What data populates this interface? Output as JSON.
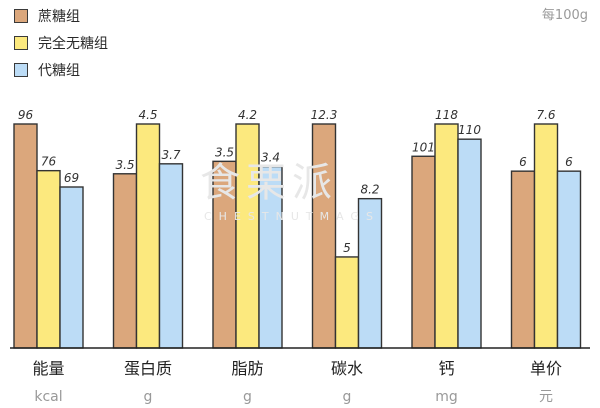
{
  "unit_note": "每100g",
  "watermark": {
    "main": "食栗派",
    "sub": "CHESTNUTMAGS"
  },
  "colors": {
    "sucrose": "#dba77c",
    "sugar_free": "#fce97e",
    "substitute": "#bcdcf6",
    "stroke": "#333333"
  },
  "chart_data": {
    "type": "bar",
    "title": "",
    "categories": [
      "能量",
      "蛋白质",
      "脂肪",
      "碳水",
      "钙",
      "单价"
    ],
    "units": [
      "kcal",
      "g",
      "g",
      "g",
      "mg",
      "元"
    ],
    "series": [
      {
        "name": "蔗糖组",
        "values": [
          96,
          3.5,
          3.5,
          12.3,
          101,
          6
        ],
        "labels": [
          "96",
          "3.5",
          "3.5",
          "12.3",
          "101",
          "6"
        ]
      },
      {
        "name": "完全无糖组",
        "values": [
          76,
          4.5,
          4.2,
          5,
          118,
          7.6
        ],
        "labels": [
          "76",
          "4.5",
          "4.2",
          "5",
          "118",
          "7.6"
        ]
      },
      {
        "name": "代糖组",
        "values": [
          69,
          3.7,
          3.4,
          8.2,
          110,
          6
        ],
        "labels": [
          "69",
          "3.7",
          "3.4",
          "8.2",
          "110",
          "6"
        ]
      }
    ],
    "scale_note": "each category is drawn on its own independent scale",
    "legend_position": "top-left",
    "grid": false
  }
}
